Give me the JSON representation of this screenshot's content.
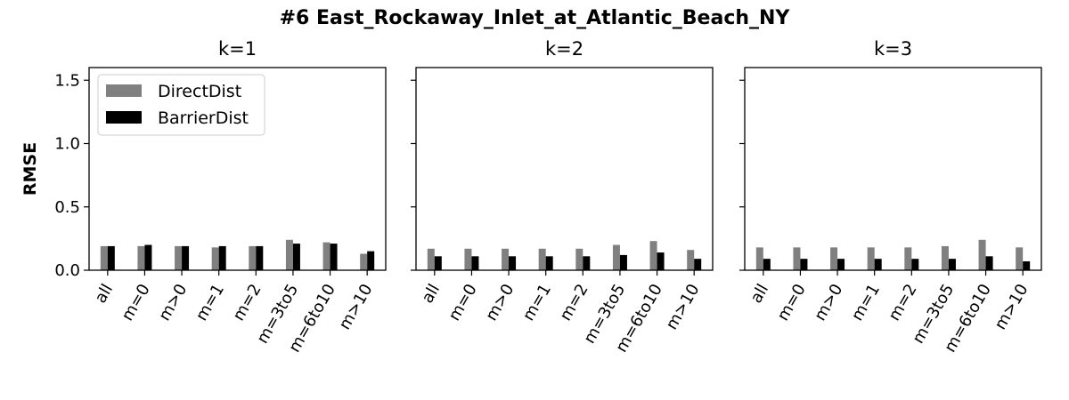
{
  "figure_title": "#6 East_Rockaway_Inlet_at_Atlantic_Beach_NY",
  "y_axis_label": "RMSE",
  "colors": {
    "DirectDist": "#808080",
    "BarrierDist": "#000000"
  },
  "chart_data": [
    {
      "type": "bar",
      "title": "k=1",
      "categories": [
        "all",
        "m=0",
        "m>0",
        "m=1",
        "m=2",
        "m=3to5",
        "m=6to10",
        "m>10"
      ],
      "series": [
        {
          "name": "DirectDist",
          "values": [
            0.19,
            0.19,
            0.19,
            0.18,
            0.19,
            0.24,
            0.22,
            0.13
          ]
        },
        {
          "name": "BarrierDist",
          "values": [
            0.19,
            0.2,
            0.19,
            0.19,
            0.19,
            0.21,
            0.21,
            0.15
          ]
        }
      ],
      "ylabel": "RMSE",
      "yticks": [
        0.0,
        0.5,
        1.0,
        1.5
      ],
      "ylim": [
        0,
        1.6
      ],
      "legend": "top-left"
    },
    {
      "type": "bar",
      "title": "k=2",
      "categories": [
        "all",
        "m=0",
        "m>0",
        "m=1",
        "m=2",
        "m=3to5",
        "m=6to10",
        "m>10"
      ],
      "series": [
        {
          "name": "DirectDist",
          "values": [
            0.17,
            0.17,
            0.17,
            0.17,
            0.17,
            0.2,
            0.23,
            0.16
          ]
        },
        {
          "name": "BarrierDist",
          "values": [
            0.11,
            0.11,
            0.11,
            0.11,
            0.11,
            0.12,
            0.14,
            0.09
          ]
        }
      ],
      "ylim": [
        0,
        1.6
      ]
    },
    {
      "type": "bar",
      "title": "k=3",
      "categories": [
        "all",
        "m=0",
        "m>0",
        "m=1",
        "m=2",
        "m=3to5",
        "m=6to10",
        "m>10"
      ],
      "series": [
        {
          "name": "DirectDist",
          "values": [
            0.18,
            0.18,
            0.18,
            0.18,
            0.18,
            0.19,
            0.24,
            0.18
          ]
        },
        {
          "name": "BarrierDist",
          "values": [
            0.09,
            0.09,
            0.09,
            0.09,
            0.09,
            0.09,
            0.11,
            0.07
          ]
        }
      ],
      "ylim": [
        0,
        1.6
      ]
    }
  ]
}
